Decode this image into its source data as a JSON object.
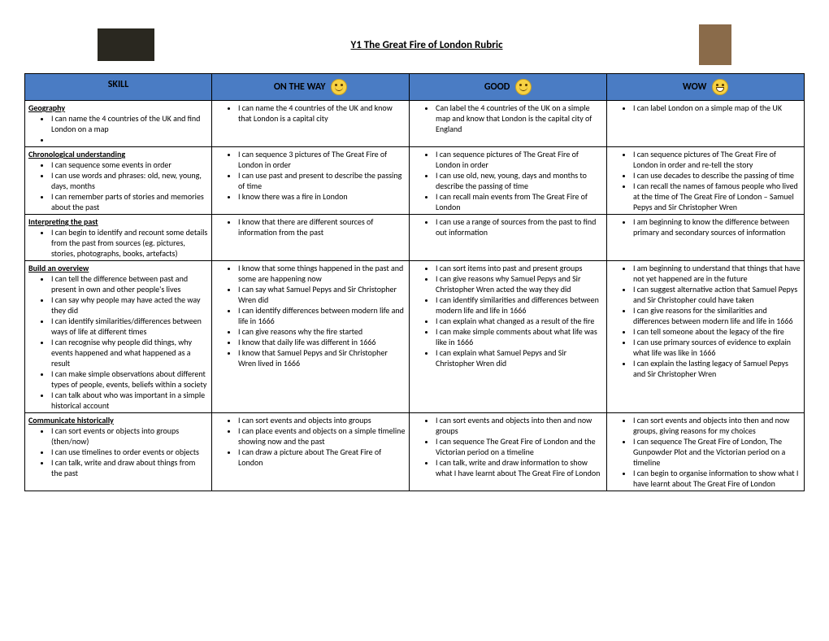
{
  "title": "Y1 The Great Fire of London Rubric",
  "headers": {
    "skill": "SKILL",
    "on_the_way": "ON THE WAY",
    "good": "GOOD",
    "wow": "WOW"
  },
  "rows": [
    {
      "skill_title": "Geography",
      "skill_items": [
        "I can name the 4 countries of the UK and find London on a map",
        ""
      ],
      "on_the_way": [
        "I can name the 4 countries of the UK and know that London is a capital city"
      ],
      "good": [
        "Can label the 4 countries of the UK on a simple map and know that London is the capital city of England"
      ],
      "wow": [
        "I can label London on a simple map of the UK"
      ]
    },
    {
      "skill_title": "Chronological understanding",
      "skill_items": [
        "I can sequence some events in order",
        "I can use words and phrases: old, new, young, days, months",
        "I can remember parts of stories and memories about the past"
      ],
      "on_the_way": [
        "I can sequence 3 pictures of The Great Fire of London in order",
        "I can use past and present to describe the passing of time",
        "I know there was a fire in London"
      ],
      "good": [
        "I can sequence pictures of The Great Fire of London in order",
        "I can use old, new, young, days and months to describe the passing of time",
        "I can recall main events from The Great Fire of London"
      ],
      "wow": [
        "I can sequence pictures of The Great Fire of London in order and re-tell the story",
        "I can use decades to describe the passing of time",
        "I can recall the names of famous people who lived at the time of The Great Fire of London – Samuel Pepys and Sir Christopher Wren"
      ]
    },
    {
      "skill_title": "Interpreting the past",
      "skill_items": [
        "I can begin to identify and recount some details from the past from sources (eg. pictures, stories, photographs, books, artefacts)"
      ],
      "on_the_way": [
        "I know that there are different sources of information from the past"
      ],
      "good": [
        "I can use a range of sources from the past to find out information"
      ],
      "wow": [
        "I am beginning to know the difference between primary and secondary sources of information"
      ]
    },
    {
      "skill_title": "Build an overview",
      "skill_items": [
        "I can tell the difference between past and present in own and other people's lives",
        "I can say why people may have acted  the way they did",
        "I can identify similarities/differences between ways of life at different times",
        "I can recognise why people did things, why events happened and what happened as a result",
        "I can make simple observations about different types of people, events, beliefs within a society",
        "I can talk about who was important in a simple historical account"
      ],
      "on_the_way": [
        "I know that some things happened in the past and some are happening now",
        "I can say what Samuel Pepys and Sir Christopher Wren did",
        "I can identify differences between modern life and life in 1666",
        "I can give reasons why the fire started",
        "I know that daily life was different in 1666",
        "I know that Samuel Pepys and Sir Christopher Wren lived in 1666"
      ],
      "good": [
        "I can sort items into past and present groups",
        "I can give reasons why Samuel Pepys and Sir Christopher Wren acted the way they did",
        "I can identify similarities and differences between modern life and life in 1666",
        "I can explain what changed as a result of the fire",
        "I can make simple comments about what life was like in 1666",
        "I can explain what Samuel Pepys and Sir Christopher Wren did"
      ],
      "wow": [
        "I am beginning to understand that things that have not yet happened are in the future",
        "I can suggest alternative action that Samuel Pepys and Sir Christopher  could have taken",
        "I can give reasons for the similarities and differences between modern life and life in 1666",
        "I can tell someone about the legacy of the fire",
        "I can use primary sources of evidence to explain what life was like in 1666",
        "I can explain the lasting legacy of Samuel Pepys and Sir Christopher Wren"
      ]
    },
    {
      "skill_title": "Communicate historically",
      "skill_items": [
        "I can sort events or objects into groups (then/now)",
        "I can use timelines to order events or objects",
        "I can talk, write and draw about things from the past"
      ],
      "on_the_way": [
        "I can sort events and objects into groups",
        "I can place events and objects on a simple timeline showing now and the past",
        "I can draw a picture about The Great Fire of London"
      ],
      "good": [
        "I can sort events and objects into then and now groups",
        "I can sequence The Great Fire of London and the Victorian period on a timeline",
        "I can talk, write and draw information to show what I have learnt about The Great Fire of London"
      ],
      "wow": [
        "I can sort events and objects into then and now groups, giving reasons for my choices",
        "I can sequence The Great Fire of London, The Gunpowder Plot and the Victorian period on a timeline",
        "I can begin to organise information to show what I have learnt about The Great Fire of London"
      ]
    }
  ]
}
